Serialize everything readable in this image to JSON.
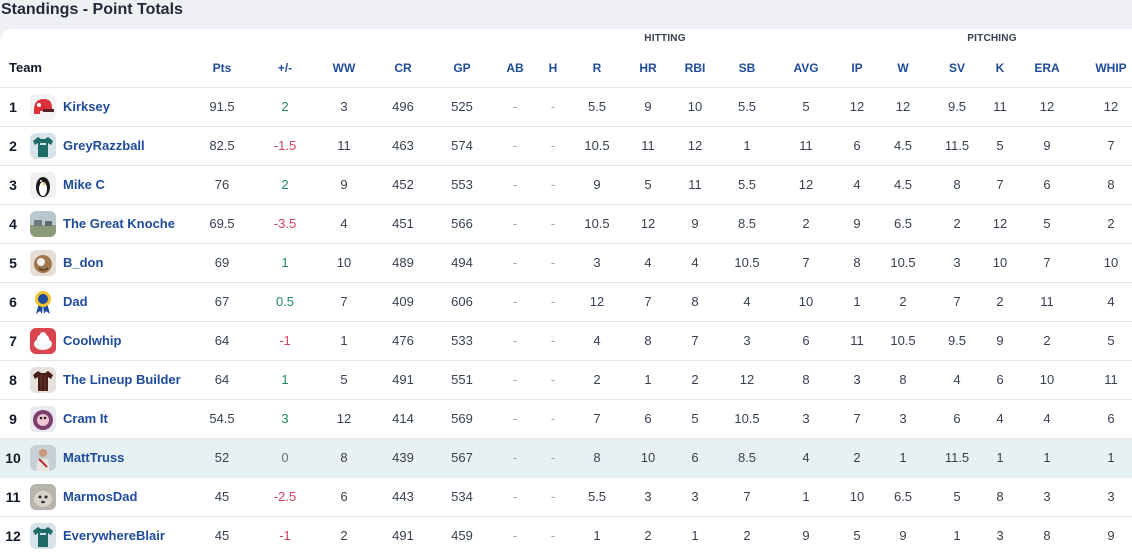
{
  "title": "Standings - Point Totals",
  "groups": {
    "hitting": "HITTING",
    "pitching": "PITCHING"
  },
  "team_header": "Team",
  "columns": [
    "Pts",
    "+/-",
    "WW",
    "CR",
    "GP",
    "AB",
    "H",
    "R",
    "HR",
    "RBI",
    "SB",
    "AVG",
    "IP",
    "W",
    "SV",
    "K",
    "ERA",
    "WHIP"
  ],
  "highlight_color": "#e6f2f1",
  "rows": [
    {
      "rank": "1",
      "team": "Kirksey",
      "avatar": "helmet-icon",
      "cells": [
        "91.5",
        "2",
        "3",
        "496",
        "525",
        "-",
        "-",
        "5.5",
        "9",
        "10",
        "5.5",
        "5",
        "12",
        "12",
        "9.5",
        "11",
        "12",
        "12"
      ]
    },
    {
      "rank": "2",
      "team": "GreyRazzball",
      "avatar": "jersey-icon",
      "cells": [
        "82.5",
        "-1.5",
        "11",
        "463",
        "574",
        "-",
        "-",
        "10.5",
        "11",
        "12",
        "1",
        "11",
        "6",
        "4.5",
        "11.5",
        "5",
        "9",
        "7"
      ]
    },
    {
      "rank": "3",
      "team": "Mike C",
      "avatar": "penguin-icon",
      "cells": [
        "76",
        "2",
        "9",
        "452",
        "553",
        "-",
        "-",
        "9",
        "5",
        "11",
        "5.5",
        "12",
        "4",
        "4.5",
        "8",
        "7",
        "6",
        "8"
      ]
    },
    {
      "rank": "4",
      "team": "The Great Knoche",
      "avatar": "landscape-photo",
      "cells": [
        "69.5",
        "-3.5",
        "4",
        "451",
        "566",
        "-",
        "-",
        "10.5",
        "12",
        "9",
        "8.5",
        "2",
        "9",
        "6.5",
        "2",
        "12",
        "5",
        "2"
      ]
    },
    {
      "rank": "5",
      "team": "B_don",
      "avatar": "baseball-icon",
      "cells": [
        "69",
        "1",
        "10",
        "489",
        "494",
        "-",
        "-",
        "3",
        "4",
        "4",
        "10.5",
        "7",
        "8",
        "10.5",
        "3",
        "10",
        "7",
        "10"
      ]
    },
    {
      "rank": "6",
      "team": "Dad",
      "avatar": "ribbon-award-icon",
      "cells": [
        "67",
        "0.5",
        "7",
        "409",
        "606",
        "-",
        "-",
        "12",
        "7",
        "8",
        "4",
        "10",
        "1",
        "2",
        "7",
        "2",
        "11",
        "4"
      ]
    },
    {
      "rank": "7",
      "team": "Coolwhip",
      "avatar": "dessert-icon",
      "cells": [
        "64",
        "-1",
        "1",
        "476",
        "533",
        "-",
        "-",
        "4",
        "8",
        "7",
        "3",
        "6",
        "11",
        "10.5",
        "9.5",
        "9",
        "2",
        "5"
      ]
    },
    {
      "rank": "8",
      "team": "The Lineup Builder",
      "avatar": "jersey-dark-icon",
      "cells": [
        "64",
        "1",
        "5",
        "491",
        "551",
        "-",
        "-",
        "2",
        "1",
        "2",
        "12",
        "8",
        "3",
        "8",
        "4",
        "6",
        "10",
        "11"
      ]
    },
    {
      "rank": "9",
      "team": "Cram It",
      "avatar": "mascot-icon",
      "cells": [
        "54.5",
        "3",
        "12",
        "414",
        "569",
        "-",
        "-",
        "7",
        "6",
        "5",
        "10.5",
        "3",
        "7",
        "3",
        "6",
        "4",
        "4",
        "6"
      ]
    },
    {
      "rank": "10",
      "team": "MattTruss",
      "avatar": "player-photo",
      "highlight": true,
      "cells": [
        "52",
        "0",
        "8",
        "439",
        "567",
        "-",
        "-",
        "8",
        "10",
        "6",
        "8.5",
        "4",
        "2",
        "1",
        "11.5",
        "1",
        "1",
        "1"
      ]
    },
    {
      "rank": "11",
      "team": "MarmosDad",
      "avatar": "animal-photo",
      "cells": [
        "45",
        "-2.5",
        "6",
        "443",
        "534",
        "-",
        "-",
        "5.5",
        "3",
        "3",
        "7",
        "1",
        "10",
        "6.5",
        "5",
        "8",
        "3",
        "3"
      ]
    },
    {
      "rank": "12",
      "team": "EverywhereBlair",
      "avatar": "jersey-icon",
      "cells": [
        "45",
        "-1",
        "2",
        "491",
        "459",
        "-",
        "-",
        "1",
        "2",
        "1",
        "2",
        "9",
        "5",
        "9",
        "1",
        "3",
        "8",
        "9"
      ]
    }
  ]
}
